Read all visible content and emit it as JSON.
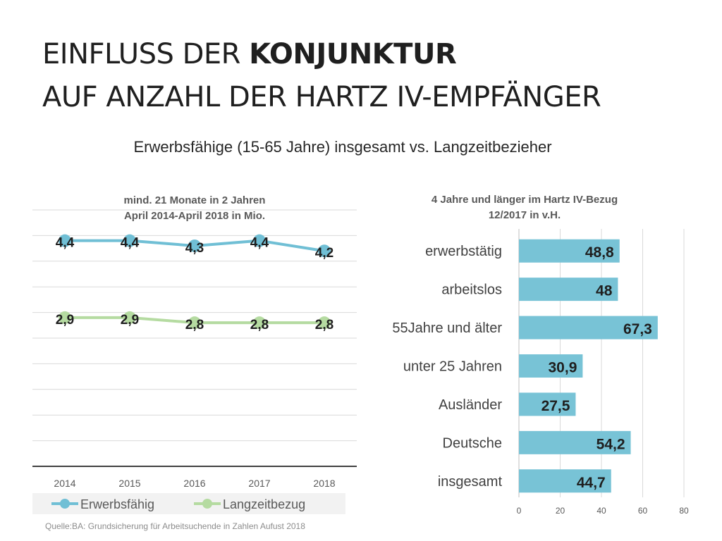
{
  "header": {
    "title_line1_part1": "EINFLUSS DER ",
    "title_line1_part2": "KONJUNKTUR",
    "title_line2": "AUF ANZAHL DER HARTZ IV-EMPFÄNGER",
    "subtitle": "Erwerbsfähige (15-65 Jahre) insgesamt vs. Langzeitbezieher"
  },
  "left_chart": {
    "title_line1": "mind. 21 Monate in 2 Jahren",
    "title_line2": "April 2014-April 2018 in Mio."
  },
  "right_chart": {
    "title_line1": "4 Jahre und länger im Hartz IV-Bezug",
    "title_line2": "12/2017 in v.H."
  },
  "source": "Quelle:BA: Grundsicherung für Arbeitsuchende in Zahlen Aufust 2018",
  "colors": {
    "blue": "#70bfd5",
    "green": "#b5dba1",
    "bar": "#78c3d6",
    "grid": "#d9d9d9",
    "axis": "#404040"
  },
  "chart_data": [
    {
      "type": "line",
      "title": "mind. 21 Monate in 2 Jahren April 2014-April 2018 in Mio.",
      "categories": [
        "2014",
        "2015",
        "2016",
        "2017",
        "2018"
      ],
      "series": [
        {
          "name": "Erwerbsfähig",
          "values": [
            4.4,
            4.4,
            4.3,
            4.4,
            4.2
          ],
          "labels": [
            "4,4",
            "4,4",
            "4,3",
            "4,4",
            "4,2"
          ]
        },
        {
          "name": "Langzeitbezug",
          "values": [
            2.9,
            2.9,
            2.8,
            2.8,
            2.8
          ],
          "labels": [
            "2,9",
            "2,9",
            "2,8",
            "2,8",
            "2,8"
          ]
        }
      ],
      "ylim": [
        0,
        5
      ],
      "grid": true,
      "legend": "bottom"
    },
    {
      "type": "bar",
      "orientation": "horizontal",
      "title": "4 Jahre und länger im Hartz IV-Bezug 12/2017 in v.H.",
      "categories": [
        "erwerbstätig",
        "arbeitslos",
        "55Jahre und älter",
        "unter 25 Jahren",
        "Ausländer",
        "Deutsche",
        "insgesamt"
      ],
      "values": [
        48.8,
        48,
        67.3,
        30.9,
        27.5,
        54.2,
        44.7
      ],
      "labels": [
        "48,8",
        "48",
        "67,3",
        "30,9",
        "27,5",
        "54,2",
        "44,7"
      ],
      "xlim": [
        0,
        80
      ],
      "xticks": [
        "0",
        "20",
        "40",
        "60",
        "80"
      ],
      "grid": true
    }
  ]
}
